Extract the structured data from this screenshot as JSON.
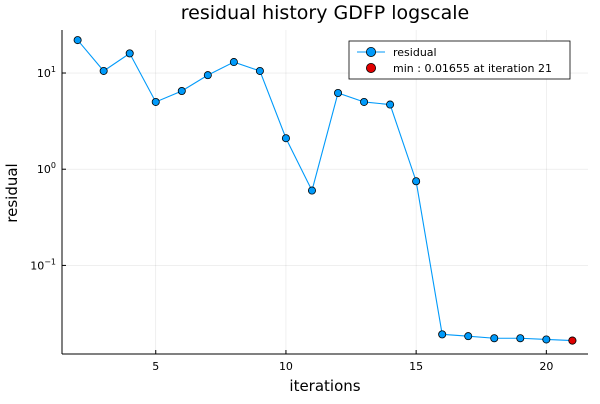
{
  "chart_data": {
    "type": "line",
    "title": "residual history GDFP logscale",
    "xlabel": "iterations",
    "ylabel": "residual",
    "x_scale": "linear",
    "y_scale": "log10",
    "xlim": [
      1.4,
      21.6
    ],
    "ylim": [
      0.012,
      28
    ],
    "x_ticks": [
      5,
      10,
      15,
      20
    ],
    "y_ticks": [
      {
        "value": 10,
        "base": "10",
        "exp": "1"
      },
      {
        "value": 1,
        "base": "10",
        "exp": "0"
      },
      {
        "value": 0.1,
        "base": "10",
        "exp": "−1"
      }
    ],
    "grid": true,
    "legend_position": "top-right",
    "series": [
      {
        "name": "residual",
        "style": "line-with-markers",
        "color": "#009AFA",
        "x": [
          2,
          3,
          4,
          5,
          6,
          7,
          8,
          9,
          10,
          11,
          12,
          13,
          14,
          15,
          16,
          17,
          18,
          19,
          20,
          21
        ],
        "y": [
          22,
          10.5,
          16,
          5.0,
          6.5,
          9.5,
          13,
          10.5,
          2.1,
          0.6,
          6.2,
          5.0,
          4.7,
          0.75,
          0.0192,
          0.0184,
          0.0175,
          0.0175,
          0.017,
          0.01655
        ]
      },
      {
        "name": "min : 0.01655 at iteration 21",
        "style": "marker",
        "color": "#E00000",
        "x": [
          21
        ],
        "y": [
          0.01655
        ]
      }
    ]
  }
}
